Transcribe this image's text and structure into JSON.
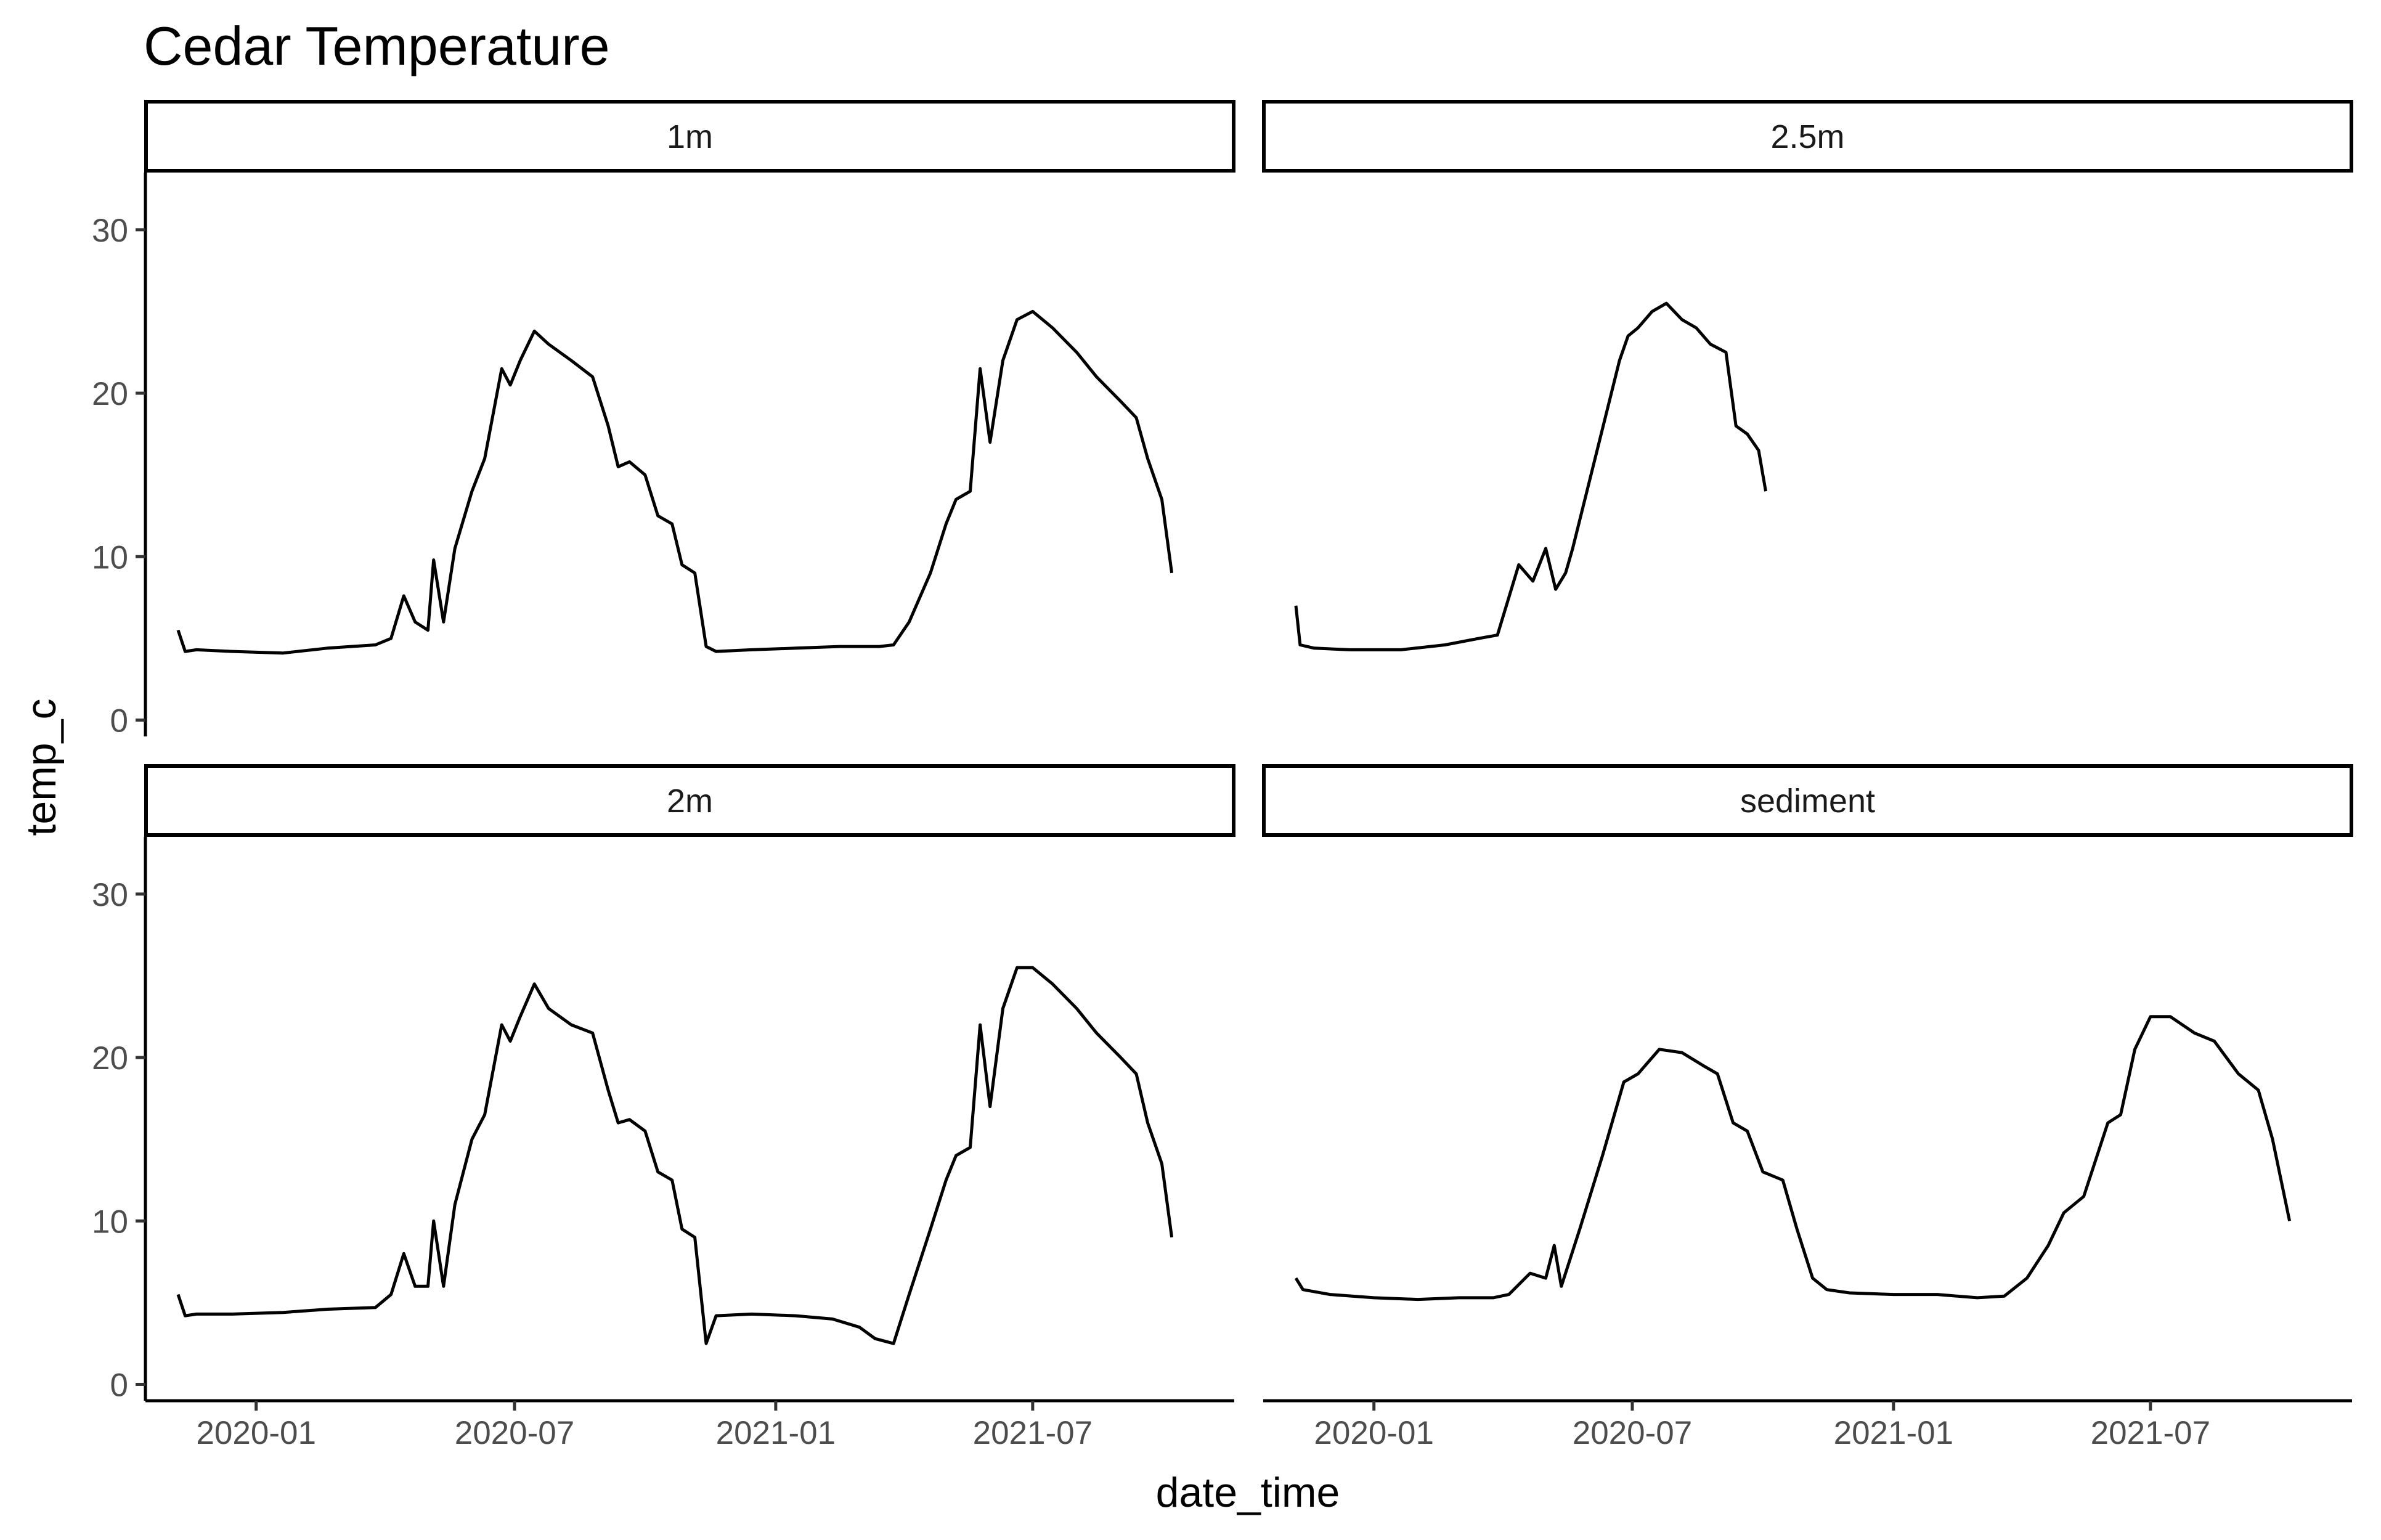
{
  "chart_data": {
    "type": "line",
    "title": "Cedar Temperature",
    "xlabel": "date_time",
    "ylabel": "temp_c",
    "x_ticks": [
      "2020-01",
      "2020-07",
      "2021-01",
      "2021-07"
    ],
    "y_ticks": [
      0,
      10,
      20,
      30
    ],
    "xlim": [
      "2019-10-15",
      "2021-11-20"
    ],
    "ylim": [
      -1,
      33.5
    ],
    "grid": false,
    "legend": "none",
    "facets": [
      {
        "label": "1m",
        "x": [
          "2019-11-07",
          "2019-11-12",
          "2019-11-20",
          "2019-12-15",
          "2020-01-20",
          "2020-02-20",
          "2020-03-25",
          "2020-04-05",
          "2020-04-14",
          "2020-04-22",
          "2020-05-01",
          "2020-05-05",
          "2020-05-12",
          "2020-05-20",
          "2020-06-01",
          "2020-06-10",
          "2020-06-22",
          "2020-06-28",
          "2020-07-05",
          "2020-07-15",
          "2020-07-25",
          "2020-08-10",
          "2020-08-25",
          "2020-09-05",
          "2020-09-12",
          "2020-09-20",
          "2020-10-01",
          "2020-10-10",
          "2020-10-20",
          "2020-10-27",
          "2020-11-05",
          "2020-11-13",
          "2020-11-20",
          "2020-12-15",
          "2021-01-15",
          "2021-02-15",
          "2021-03-15",
          "2021-03-25",
          "2021-04-05",
          "2021-04-20",
          "2021-05-01",
          "2021-05-08",
          "2021-05-18",
          "2021-05-25",
          "2021-06-01",
          "2021-06-10",
          "2021-06-20",
          "2021-07-01",
          "2021-07-15",
          "2021-08-01",
          "2021-08-15",
          "2021-09-01",
          "2021-09-12",
          "2021-09-20",
          "2021-09-30",
          "2021-10-07"
        ],
        "y": [
          5.5,
          4.2,
          4.3,
          4.2,
          4.1,
          4.4,
          4.6,
          5.0,
          7.6,
          6.0,
          5.5,
          9.8,
          6.0,
          10.5,
          14.0,
          16.0,
          21.5,
          20.5,
          22.0,
          23.8,
          23.0,
          22.0,
          21.0,
          18.0,
          15.5,
          15.8,
          15.0,
          12.5,
          12.0,
          9.5,
          9.0,
          4.5,
          4.2,
          4.3,
          4.4,
          4.5,
          4.5,
          4.6,
          6.0,
          9.0,
          12.0,
          13.5,
          14.0,
          21.5,
          17.0,
          22.0,
          24.5,
          25.0,
          24.0,
          22.5,
          21.0,
          19.5,
          18.5,
          16.0,
          13.5,
          9.0
        ]
      },
      {
        "label": "2.5m",
        "x": [
          "2019-11-07",
          "2019-11-10",
          "2019-11-20",
          "2019-12-15",
          "2020-01-20",
          "2020-02-20",
          "2020-03-15",
          "2020-03-28",
          "2020-04-05",
          "2020-04-12",
          "2020-04-22",
          "2020-05-01",
          "2020-05-08",
          "2020-05-15",
          "2020-05-20",
          "2020-06-22",
          "2020-06-28",
          "2020-07-05",
          "2020-07-15",
          "2020-07-25",
          "2020-08-05",
          "2020-08-15",
          "2020-08-25",
          "2020-09-05",
          "2020-09-12",
          "2020-09-20",
          "2020-09-28",
          "2020-10-03"
        ],
        "y": [
          7.0,
          4.6,
          4.4,
          4.3,
          4.3,
          4.6,
          5.0,
          5.2,
          7.5,
          9.5,
          8.5,
          10.5,
          8.0,
          9.0,
          10.5,
          22.0,
          23.5,
          24.0,
          25.0,
          25.5,
          24.5,
          24.0,
          23.0,
          22.5,
          18.0,
          17.5,
          16.5,
          14.0
        ]
      },
      {
        "label": "2m",
        "x": [
          "2019-11-07",
          "2019-11-12",
          "2019-11-20",
          "2019-12-15",
          "2020-01-20",
          "2020-02-20",
          "2020-03-25",
          "2020-04-05",
          "2020-04-14",
          "2020-04-22",
          "2020-05-01",
          "2020-05-05",
          "2020-05-12",
          "2020-05-20",
          "2020-06-01",
          "2020-06-10",
          "2020-06-22",
          "2020-06-28",
          "2020-07-05",
          "2020-07-15",
          "2020-07-25",
          "2020-08-10",
          "2020-08-25",
          "2020-09-05",
          "2020-09-12",
          "2020-09-20",
          "2020-10-01",
          "2020-10-10",
          "2020-10-20",
          "2020-10-27",
          "2020-11-05",
          "2020-11-13",
          "2020-11-20",
          "2020-12-15",
          "2021-01-15",
          "2021-02-10",
          "2021-03-01",
          "2021-03-12",
          "2021-03-25",
          "2021-04-05",
          "2021-04-20",
          "2021-05-01",
          "2021-05-08",
          "2021-05-18",
          "2021-05-25",
          "2021-06-01",
          "2021-06-10",
          "2021-06-20",
          "2021-07-01",
          "2021-07-15",
          "2021-08-01",
          "2021-08-15",
          "2021-09-01",
          "2021-09-12",
          "2021-09-20",
          "2021-09-30",
          "2021-10-07"
        ],
        "y": [
          5.5,
          4.2,
          4.3,
          4.3,
          4.4,
          4.6,
          4.7,
          5.5,
          8.0,
          6.0,
          6.0,
          10.0,
          6.0,
          11.0,
          15.0,
          16.5,
          22.0,
          21.0,
          22.5,
          24.5,
          23.0,
          22.0,
          21.5,
          18.0,
          16.0,
          16.2,
          15.5,
          13.0,
          12.5,
          9.5,
          9.0,
          2.5,
          4.2,
          4.3,
          4.2,
          4.0,
          3.5,
          2.8,
          2.5,
          5.5,
          9.5,
          12.5,
          14.0,
          14.5,
          22.0,
          17.0,
          23.0,
          25.5,
          25.5,
          24.5,
          23.0,
          21.5,
          20.0,
          19.0,
          16.0,
          13.5,
          9.0
        ]
      },
      {
        "label": "sediment",
        "x": [
          "2019-11-07",
          "2019-11-12",
          "2019-12-01",
          "2020-01-01",
          "2020-02-01",
          "2020-03-01",
          "2020-03-25",
          "2020-04-05",
          "2020-04-20",
          "2020-05-01",
          "2020-05-07",
          "2020-05-12",
          "2020-05-25",
          "2020-06-10",
          "2020-06-25",
          "2020-07-05",
          "2020-07-20",
          "2020-08-05",
          "2020-08-20",
          "2020-08-30",
          "2020-09-10",
          "2020-09-20",
          "2020-10-01",
          "2020-10-15",
          "2020-10-25",
          "2020-11-05",
          "2020-11-15",
          "2020-12-01",
          "2021-01-01",
          "2021-02-01",
          "2021-03-01",
          "2021-03-20",
          "2021-04-05",
          "2021-04-20",
          "2021-05-01",
          "2021-05-15",
          "2021-06-01",
          "2021-06-10",
          "2021-06-20",
          "2021-07-01",
          "2021-07-15",
          "2021-08-01",
          "2021-08-15",
          "2021-09-01",
          "2021-09-15",
          "2021-09-25",
          "2021-10-07"
        ],
        "y": [
          6.5,
          5.8,
          5.5,
          5.3,
          5.2,
          5.3,
          5.3,
          5.5,
          6.8,
          6.5,
          8.5,
          6.0,
          9.5,
          14.0,
          18.5,
          19.0,
          20.5,
          20.3,
          19.5,
          19.0,
          16.0,
          15.5,
          13.0,
          12.5,
          9.5,
          6.5,
          5.8,
          5.6,
          5.5,
          5.5,
          5.3,
          5.4,
          6.5,
          8.5,
          10.5,
          11.5,
          16.0,
          16.5,
          20.5,
          22.5,
          22.5,
          21.5,
          21.0,
          19.0,
          18.0,
          15.0,
          10.0
        ]
      }
    ]
  }
}
